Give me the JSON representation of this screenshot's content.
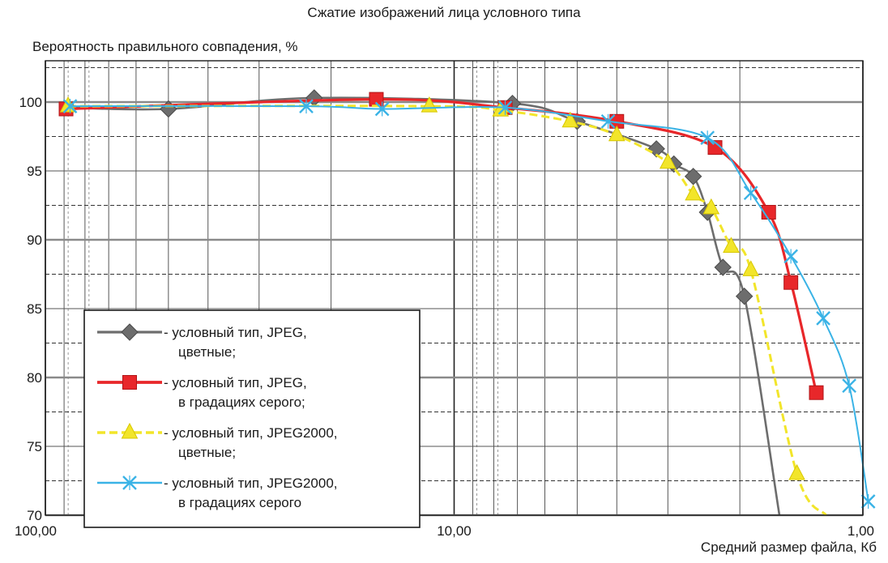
{
  "chart_data": {
    "type": "line",
    "title": "Сжатие изображений лица  условного типа",
    "ylabel": "Вероятность правильного совпадения, %",
    "xlabel": "Средний размер файла, Кб",
    "x_scale": "log",
    "x_reversed": true,
    "xlim": [
      100,
      1
    ],
    "ylim": [
      70,
      103
    ],
    "x_ticks": [
      100,
      10,
      1
    ],
    "x_tick_labels": [
      "100,00",
      "10,00",
      "1,00"
    ],
    "y_ticks": [
      70,
      75,
      80,
      85,
      90,
      95,
      100
    ],
    "y_tick_labels": [
      "70",
      "75",
      "80",
      "85",
      "90",
      "95",
      "100"
    ],
    "grid": true,
    "legend_position": "bottom-left",
    "series": [
      {
        "name_lines": [
          "- условный тип,   JPEG,",
          "цветные;"
        ],
        "color": "#6d6d6d",
        "marker": "diamond",
        "x": [
          88,
          50,
          22,
          7.2,
          5.0,
          3.2,
          2.9,
          2.6,
          2.4,
          2.2,
          1.95,
          1.6
        ],
        "y": [
          99.6,
          99.5,
          100.3,
          99.9,
          98.6,
          96.6,
          95.5,
          94.6,
          92.0,
          88.0,
          85.9,
          70.0
        ]
      },
      {
        "name_lines": [
          "- условный тип,   JPEG,",
          "в градациях серого;"
        ],
        "color": "#e8272a",
        "marker": "square",
        "x": [
          89,
          15.5,
          7.5,
          4.0,
          2.3,
          1.7,
          1.5,
          1.3
        ],
        "y": [
          99.5,
          100.2,
          99.6,
          98.6,
          96.7,
          92.0,
          86.9,
          78.9
        ]
      },
      {
        "name_lines": [
          "- условный тип,   JPEG2000,",
          "цветные;"
        ],
        "color": "#f2e52a",
        "marker": "triangle",
        "x": [
          88,
          11.5,
          7.7,
          5.2,
          4.0,
          3.0,
          2.6,
          2.35,
          2.1,
          1.88,
          1.45,
          1.23
        ],
        "y": [
          99.7,
          99.7,
          99.4,
          98.6,
          97.6,
          95.6,
          93.3,
          92.3,
          89.5,
          87.8,
          73.0,
          70.0
        ]
      },
      {
        "name_lines": [
          "- условный тип,   JPEG2000,",
          "в градациях серого"
        ],
        "color": "#3ab3e6",
        "marker": "cross",
        "x": [
          87,
          23,
          15,
          7.5,
          4.2,
          2.4,
          1.88,
          1.5,
          1.25,
          1.08,
          0.97
        ],
        "y": [
          99.7,
          99.7,
          99.5,
          99.6,
          98.6,
          97.4,
          93.4,
          88.8,
          84.3,
          79.4,
          71.0
        ]
      }
    ]
  }
}
